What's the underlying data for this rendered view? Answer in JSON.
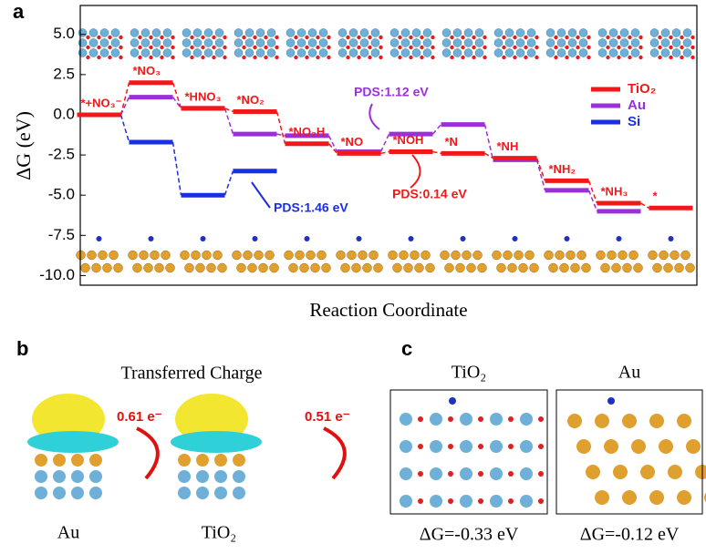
{
  "chart_data": {
    "type": "energy-levels",
    "panel_label": "a",
    "ylabel": "ΔG (eV)",
    "xlabel": "Reaction Coordinate",
    "categories": [
      "*+NO₃⁻",
      "*NO₃",
      "*HNO₃",
      "*NO₂",
      "*NO₂H",
      "*NO",
      "*NOH",
      "*N",
      "*NH",
      "*NH₂",
      "*NH₃",
      "*"
    ],
    "series": [
      {
        "name": "TiO₂",
        "color": "#f01818",
        "values": [
          0,
          2.0,
          0.4,
          0.2,
          -1.8,
          -2.4,
          -2.3,
          -2.4,
          -2.7,
          -4.1,
          -5.5,
          -5.8
        ]
      },
      {
        "name": "Au",
        "color": "#9b30d9",
        "values": [
          0,
          1.1,
          0.4,
          -1.2,
          -1.3,
          -2.3,
          -1.2,
          -0.6,
          -2.8,
          -4.7,
          -6.0,
          null
        ]
      },
      {
        "name": "Si",
        "color": "#1a2ee6",
        "values": [
          0,
          -1.7,
          -5.0,
          -3.5,
          null,
          null,
          null,
          null,
          null,
          null,
          null,
          null
        ]
      }
    ],
    "annotations": [
      {
        "text": "PDS:1.12 eV",
        "color": "#9b30d9"
      },
      {
        "text": "PDS:0.14 eV",
        "color": "#f01818"
      },
      {
        "text": "PDS:1.46 eV",
        "color": "#1a2ee6"
      }
    ],
    "ylim": [
      -10.6,
      6.8
    ],
    "yticks": [
      {
        "value": 5,
        "label": "5.0"
      },
      2.5,
      {
        "value": 0,
        "label": "0.0"
      },
      -2.5,
      {
        "value": -5,
        "label": "-5.0"
      },
      -7.5,
      {
        "value": -10,
        "label": "-10.0"
      }
    ]
  },
  "panel_b": {
    "label": "b",
    "title": "Transferred Charge",
    "charges": [
      "0.61 e⁻",
      "0.51 e⁻"
    ],
    "captions": [
      "Au",
      "TiO₂"
    ]
  },
  "panel_c": {
    "label": "c",
    "titles": [
      "TiO₂",
      "Au"
    ],
    "captions": [
      "ΔG=-0.33 eV",
      "ΔG=-0.12 eV"
    ]
  }
}
